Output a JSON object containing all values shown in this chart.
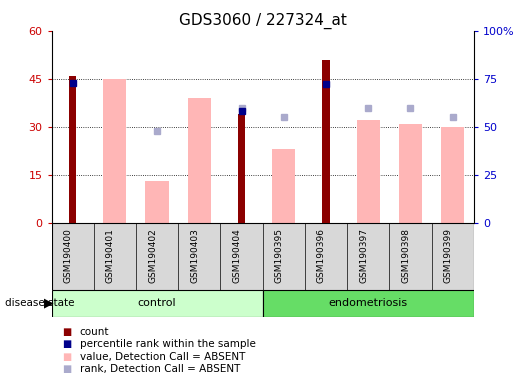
{
  "title": "GDS3060 / 227324_at",
  "samples": [
    "GSM190400",
    "GSM190401",
    "GSM190402",
    "GSM190403",
    "GSM190404",
    "GSM190395",
    "GSM190396",
    "GSM190397",
    "GSM190398",
    "GSM190399"
  ],
  "groups": [
    "control",
    "control",
    "control",
    "control",
    "control",
    "endometriosis",
    "endometriosis",
    "endometriosis",
    "endometriosis",
    "endometriosis"
  ],
  "count_values": [
    46,
    0,
    0,
    0,
    34,
    0,
    51,
    0,
    0,
    0
  ],
  "percentile_values": [
    73,
    0,
    0,
    0,
    58,
    0,
    72,
    0,
    0,
    0
  ],
  "pink_bar_values": [
    0,
    45,
    13,
    39,
    0,
    23,
    0,
    32,
    31,
    30
  ],
  "lavender_dot_values": [
    0,
    0,
    48,
    0,
    60,
    55,
    0,
    60,
    60,
    55
  ],
  "left_ylim": [
    0,
    60
  ],
  "right_ylim": [
    0,
    100
  ],
  "left_yticks": [
    0,
    15,
    30,
    45,
    60
  ],
  "right_yticks": [
    0,
    25,
    50,
    75,
    100
  ],
  "right_yticklabels": [
    "0",
    "25",
    "50",
    "75",
    "100%"
  ],
  "left_yticklabels": [
    "0",
    "15",
    "30",
    "45",
    "60"
  ],
  "left_tick_color": "#cc0000",
  "right_tick_color": "#0000cc",
  "bar_color_count": "#8B0000",
  "bar_color_percentile": "#00008B",
  "bar_color_pink": "#FFB6B6",
  "dot_color_lavender": "#aaaacc",
  "control_bg": "#ccffcc",
  "endometriosis_bg": "#66dd66",
  "sample_label_bg": "#d8d8d8",
  "plot_bg": "#ffffff",
  "title_fontsize": 11,
  "tick_fontsize": 8,
  "legend_fontsize": 8
}
